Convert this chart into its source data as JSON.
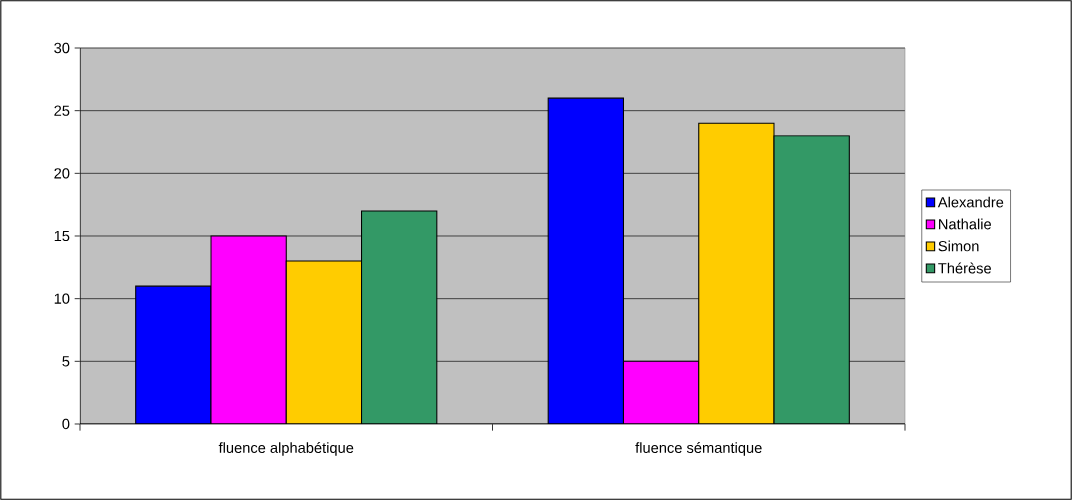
{
  "chart_data": {
    "type": "bar",
    "categories": [
      "fluence alphabétique",
      "fluence sémantique"
    ],
    "series": [
      {
        "name": "Alexandre",
        "color": "#0000ff",
        "values": [
          11,
          26
        ]
      },
      {
        "name": "Nathalie",
        "color": "#ff00ff",
        "values": [
          15,
          5
        ]
      },
      {
        "name": "Simon",
        "color": "#ffcc00",
        "values": [
          13,
          24
        ]
      },
      {
        "name": "Thérèse",
        "color": "#339966",
        "values": [
          17,
          23
        ]
      }
    ],
    "ylim": [
      0,
      30
    ],
    "yticks": [
      0,
      5,
      10,
      15,
      20,
      25,
      30
    ],
    "grid": "y",
    "legend": "right"
  }
}
